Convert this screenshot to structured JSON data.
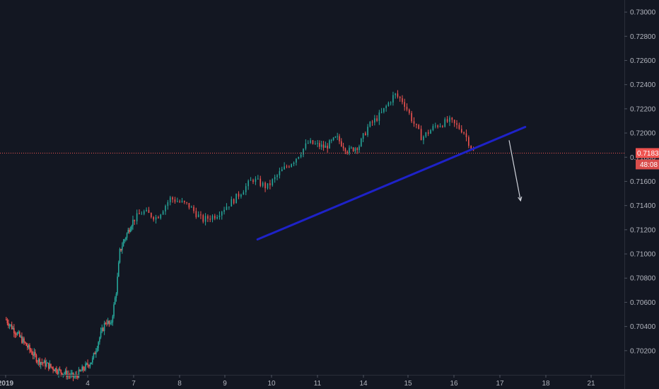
{
  "chart_data": {
    "type": "candlestick",
    "instrument_quote_precision": 5,
    "x_axis": {
      "tick_labels": [
        "2019",
        "4",
        "7",
        "8",
        "9",
        "10",
        "11",
        "14",
        "15",
        "16",
        "17",
        "18",
        "21"
      ]
    },
    "y_axis": {
      "range": [
        0.7,
        0.731
      ],
      "tick_labels": [
        "0.73000",
        "0.72800",
        "0.72600",
        "0.72400",
        "0.72200",
        "0.72000",
        "0.71800",
        "0.71600",
        "0.71400",
        "0.71200",
        "0.71000",
        "0.70800",
        "0.70600",
        "0.70400",
        "0.70200"
      ]
    },
    "last_price": {
      "value": 0.71834,
      "label": "0.71834",
      "countdown": "48:08",
      "color": "#ef5350"
    },
    "colors": {
      "up": "#26a69a",
      "down": "#ef5350",
      "background": "#131722",
      "trendline": "#1e22c8",
      "projection_arrow": "#d1d4dc"
    },
    "price_path": [
      [
        0.0,
        0.7046
      ],
      [
        1.5,
        0.7012
      ],
      [
        2.5,
        0.7003
      ],
      [
        3.2,
        0.6998
      ],
      [
        3.6,
        0.7005
      ],
      [
        4.0,
        0.7012
      ],
      [
        4.3,
        0.703
      ],
      [
        4.6,
        0.7045
      ],
      [
        4.8,
        0.704
      ],
      [
        5.05,
        0.707
      ],
      [
        5.2,
        0.7102
      ],
      [
        5.4,
        0.7112
      ],
      [
        5.7,
        0.7125
      ],
      [
        6.0,
        0.7135
      ],
      [
        6.3,
        0.713
      ],
      [
        6.6,
        0.7146
      ],
      [
        7.0,
        0.714
      ],
      [
        7.3,
        0.7128
      ],
      [
        7.6,
        0.7132
      ],
      [
        8.0,
        0.7145
      ],
      [
        8.4,
        0.7162
      ],
      [
        8.7,
        0.7155
      ],
      [
        9.0,
        0.7168
      ],
      [
        9.3,
        0.7178
      ],
      [
        9.6,
        0.7192
      ],
      [
        10.0,
        0.7188
      ],
      [
        10.3,
        0.7196
      ],
      [
        10.6,
        0.7185
      ],
      [
        10.9,
        0.719
      ],
      [
        11.1,
        0.7205
      ],
      [
        11.4,
        0.7216
      ],
      [
        11.7,
        0.7232
      ],
      [
        11.9,
        0.7226
      ],
      [
        12.1,
        0.721
      ],
      [
        12.3,
        0.7196
      ],
      [
        12.6,
        0.7206
      ],
      [
        12.9,
        0.721
      ],
      [
        13.2,
        0.7202
      ],
      [
        13.35,
        0.719
      ],
      [
        13.45,
        0.7183
      ]
    ],
    "trendline": {
      "start": {
        "x": 8.5,
        "y": 0.7112
      },
      "end": {
        "x": 14.55,
        "y": 0.7205
      }
    },
    "projection": {
      "start": {
        "x": 14.2,
        "y": 0.7194
      },
      "end": {
        "x": 14.45,
        "y": 0.7144
      }
    },
    "grid": false
  }
}
